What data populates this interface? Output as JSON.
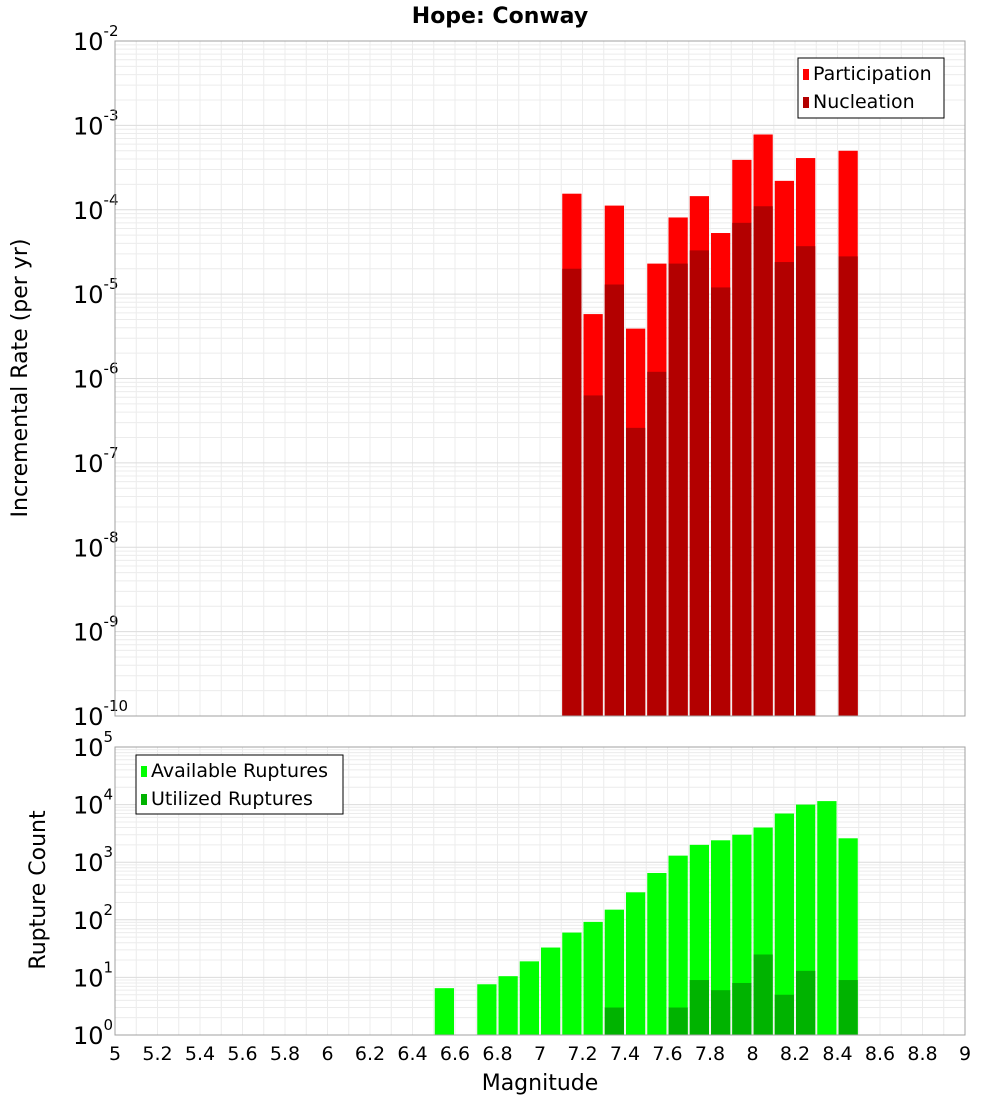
{
  "chart_data": [
    {
      "type": "bar",
      "title": "Hope: Conway",
      "xlabel": "Magnitude",
      "ylabel": "Incremental Rate (per yr)",
      "yscale": "log",
      "ylim_exponents": [
        -10,
        -2
      ],
      "xlim": [
        5,
        9
      ],
      "grid": true,
      "legend_position": "top-right",
      "bar_width": 0.1,
      "series": [
        {
          "name": "Participation",
          "color": "#ff0000",
          "points": [
            {
              "x": 7.15,
              "y": 0.000155
            },
            {
              "x": 7.25,
              "y": 5.8e-06
            },
            {
              "x": 7.35,
              "y": 0.000112
            },
            {
              "x": 7.45,
              "y": 3.9e-06
            },
            {
              "x": 7.55,
              "y": 2.3e-05
            },
            {
              "x": 7.65,
              "y": 8.1e-05
            },
            {
              "x": 7.75,
              "y": 0.000145
            },
            {
              "x": 7.85,
              "y": 5.3e-05
            },
            {
              "x": 7.95,
              "y": 0.00039
            },
            {
              "x": 8.05,
              "y": 0.00078
            },
            {
              "x": 8.15,
              "y": 0.00022
            },
            {
              "x": 8.25,
              "y": 0.00041
            },
            {
              "x": 8.45,
              "y": 0.0005
            }
          ]
        },
        {
          "name": "Nucleation",
          "color": "#b30000",
          "points": [
            {
              "x": 7.15,
              "y": 2e-05
            },
            {
              "x": 7.25,
              "y": 6.3e-07
            },
            {
              "x": 7.35,
              "y": 1.3e-05
            },
            {
              "x": 7.45,
              "y": 2.6e-07
            },
            {
              "x": 7.55,
              "y": 1.2e-06
            },
            {
              "x": 7.65,
              "y": 2.3e-05
            },
            {
              "x": 7.75,
              "y": 3.3e-05
            },
            {
              "x": 7.85,
              "y": 1.2e-05
            },
            {
              "x": 7.95,
              "y": 7e-05
            },
            {
              "x": 8.05,
              "y": 0.00011
            },
            {
              "x": 8.15,
              "y": 2.4e-05
            },
            {
              "x": 8.25,
              "y": 3.7e-05
            },
            {
              "x": 8.45,
              "y": 2.8e-05
            }
          ]
        }
      ]
    },
    {
      "type": "bar",
      "xlabel": "Magnitude",
      "ylabel": "Rupture Count",
      "yscale": "log",
      "ylim_exponents": [
        0,
        5
      ],
      "xlim": [
        5,
        9
      ],
      "grid": true,
      "legend_position": "top-left",
      "bar_width": 0.1,
      "series": [
        {
          "name": "Available Ruptures",
          "color": "#00ff00",
          "points": [
            {
              "x": 6.55,
              "y": 6.5
            },
            {
              "x": 6.75,
              "y": 7.6
            },
            {
              "x": 6.85,
              "y": 10.5
            },
            {
              "x": 6.95,
              "y": 19
            },
            {
              "x": 7.05,
              "y": 33
            },
            {
              "x": 7.15,
              "y": 60
            },
            {
              "x": 7.25,
              "y": 92
            },
            {
              "x": 7.35,
              "y": 150
            },
            {
              "x": 7.45,
              "y": 300
            },
            {
              "x": 7.55,
              "y": 650
            },
            {
              "x": 7.65,
              "y": 1300
            },
            {
              "x": 7.75,
              "y": 2000
            },
            {
              "x": 7.85,
              "y": 2400
            },
            {
              "x": 7.95,
              "y": 3000
            },
            {
              "x": 8.05,
              "y": 4000
            },
            {
              "x": 8.15,
              "y": 7000
            },
            {
              "x": 8.25,
              "y": 10000
            },
            {
              "x": 8.35,
              "y": 11500
            },
            {
              "x": 8.45,
              "y": 2600
            }
          ]
        },
        {
          "name": "Utilized Ruptures",
          "color": "#00b300",
          "points": [
            {
              "x": 7.15,
              "y": 1
            },
            {
              "x": 7.25,
              "y": 1
            },
            {
              "x": 7.35,
              "y": 3
            },
            {
              "x": 7.45,
              "y": 1
            },
            {
              "x": 7.55,
              "y": 1
            },
            {
              "x": 7.65,
              "y": 3
            },
            {
              "x": 7.75,
              "y": 9
            },
            {
              "x": 7.85,
              "y": 6
            },
            {
              "x": 7.95,
              "y": 8
            },
            {
              "x": 8.05,
              "y": 25
            },
            {
              "x": 8.15,
              "y": 5
            },
            {
              "x": 8.25,
              "y": 13
            },
            {
              "x": 8.45,
              "y": 9
            }
          ]
        }
      ]
    }
  ],
  "x_ticks": [
    "5",
    "5.2",
    "5.4",
    "5.6",
    "5.8",
    "6",
    "6.2",
    "6.4",
    "6.6",
    "6.8",
    "7",
    "7.2",
    "7.4",
    "7.6",
    "7.8",
    "8",
    "8.2",
    "8.4",
    "8.6",
    "8.8",
    "9"
  ]
}
